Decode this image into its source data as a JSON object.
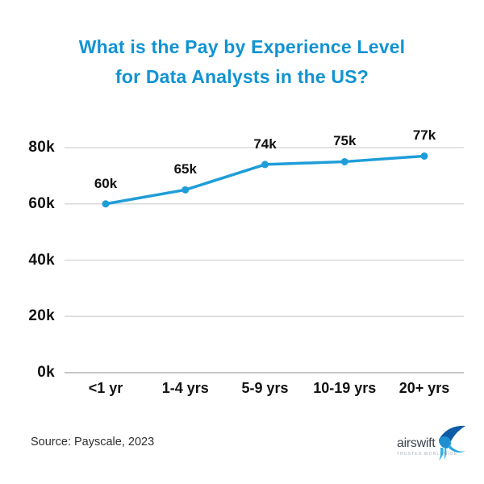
{
  "title": {
    "line1": "What is the Pay by Experience Level",
    "line2": "for Data Analysts in the US?"
  },
  "chart_data": {
    "type": "line",
    "title": "What is the Pay by Experience Level for Data Analysts in the US?",
    "categories": [
      "<1 yr",
      "1-4 yrs",
      "5-9 yrs",
      "10-19 yrs",
      "20+ yrs"
    ],
    "values": [
      60000,
      65000,
      74000,
      75000,
      77000
    ],
    "point_labels": [
      "60k",
      "65k",
      "74k",
      "75k",
      "77k"
    ],
    "yticks": [
      {
        "label": "80k",
        "value": 80000
      },
      {
        "label": "60k",
        "value": 60000
      },
      {
        "label": "40k",
        "value": 40000
      },
      {
        "label": "20k",
        "value": 20000
      },
      {
        "label": "0k",
        "value": 0
      }
    ],
    "ylim": [
      0,
      80000
    ],
    "xlabel": "",
    "ylabel": "",
    "grid": true,
    "legend": false
  },
  "source": {
    "text": "Source: Payscale, 2023"
  },
  "logo": {
    "wordmark": "airswift",
    "tagline": "TRUSTED WORLDWIDE"
  },
  "colors": {
    "accent": "#1193d2",
    "line": "#1e9dd9",
    "grid": "#d9d9d9",
    "axis_line": "#c6c6c6",
    "label_text": "#111111",
    "source_text": "#2f2f2f",
    "logo_text": "#3c434e",
    "logo_tagline": "#a8afb7",
    "bird_dark": "#0f5ca6",
    "bird_mid": "#1e8fd0",
    "bird_light": "#2fb0e5"
  }
}
